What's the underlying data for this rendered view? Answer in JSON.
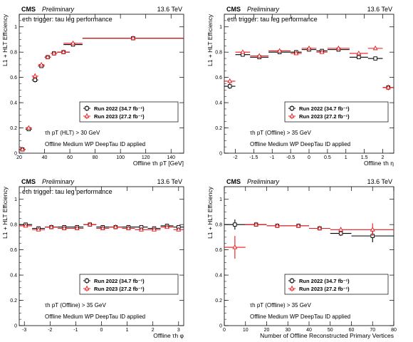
{
  "chart_data": [
    {
      "type": "scatter",
      "header_left": "CMS",
      "header_prelim": "Preliminary",
      "header_right": "13.6 TeV",
      "title": "eτh trigger: tau leg performance",
      "xlabel": "Offline τh pT [GeV]",
      "ylabel": "L1 + HLT Efficiency",
      "xlim": [
        20,
        150
      ],
      "ylim": [
        0,
        1.1
      ],
      "xticks": [
        20,
        40,
        60,
        80,
        100,
        120,
        140
      ],
      "yticks": [
        0,
        0.2,
        0.4,
        0.6,
        0.8,
        1.0
      ],
      "ytick_labels": [
        "0",
        "0.2",
        "0.4",
        "0.6",
        "0.8",
        "1"
      ],
      "annotation1": "τh pT (HLT) > 30 GeV",
      "annotation2": "Offline Medium WP DeepTau ID applied",
      "series": [
        {
          "name": "Run 2022 (34.7 fb⁻¹)",
          "color": "#000000",
          "marker": "square-open",
          "x": [
            22.5,
            27.5,
            32.5,
            37.5,
            42.5,
            47.5,
            55,
            62.5,
            110
          ],
          "xerr": [
            2.5,
            2.5,
            2.5,
            2.5,
            2.5,
            2.5,
            5,
            7.5,
            40
          ],
          "y": [
            0.03,
            0.19,
            0.58,
            0.69,
            0.76,
            0.79,
            0.8,
            0.86,
            0.91
          ],
          "yerr": [
            0.01,
            0.01,
            0.02,
            0.01,
            0.01,
            0.01,
            0.01,
            0.01,
            0.01
          ]
        },
        {
          "name": "Run 2023 (27.2 fb⁻¹)",
          "color": "#e8181a",
          "marker": "triangle-open",
          "x": [
            22.5,
            27.5,
            32.5,
            37.5,
            42.5,
            47.5,
            55,
            62.5,
            110
          ],
          "xerr": [
            2.5,
            2.5,
            2.5,
            2.5,
            2.5,
            2.5,
            5,
            7.5,
            40
          ],
          "y": [
            0.03,
            0.2,
            0.61,
            0.7,
            0.76,
            0.79,
            0.8,
            0.87,
            0.91
          ],
          "yerr": [
            0.01,
            0.01,
            0.02,
            0.01,
            0.01,
            0.01,
            0.01,
            0.01,
            0.01
          ]
        }
      ]
    },
    {
      "type": "scatter",
      "header_left": "CMS",
      "header_prelim": "Preliminary",
      "header_right": "13.6 TeV",
      "title": "eτh trigger: tau leg performance",
      "xlabel": "Offline τh η",
      "ylabel": "L1 + HLT Efficiency",
      "xlim": [
        -2.3,
        2.3
      ],
      "ylim": [
        0,
        1.1
      ],
      "xticks": [
        -2,
        -1.5,
        -1,
        -0.5,
        0,
        0.5,
        1,
        1.5,
        2
      ],
      "yticks": [
        0,
        0.2,
        0.4,
        0.6,
        0.8,
        1.0
      ],
      "ytick_labels": [
        "0",
        "0.2",
        "0.4",
        "0.6",
        "0.8",
        "1"
      ],
      "annotation1": "τh pT (Offline) > 35 GeV",
      "annotation2": "Offline Medium WP DeepTau ID applied",
      "series": [
        {
          "name": "Run 2022 (34.7 fb⁻¹)",
          "color": "#000000",
          "marker": "square-open",
          "x": [
            -2.15,
            -1.8,
            -1.35,
            -0.8,
            -0.35,
            0,
            0.35,
            0.8,
            1.35,
            1.8,
            2.15
          ],
          "xerr": [
            0.15,
            0.2,
            0.25,
            0.3,
            0.15,
            0.2,
            0.15,
            0.3,
            0.25,
            0.2,
            0.15
          ],
          "y": [
            0.53,
            0.78,
            0.76,
            0.8,
            0.8,
            0.82,
            0.81,
            0.82,
            0.76,
            0.75,
            0.52
          ],
          "yerr": [
            0.02,
            0.01,
            0.01,
            0.01,
            0.01,
            0.01,
            0.01,
            0.01,
            0.01,
            0.01,
            0.02
          ]
        },
        {
          "name": "Run 2023 (27.2 fb⁻¹)",
          "color": "#e8181a",
          "marker": "triangle-open",
          "x": [
            -2.15,
            -1.8,
            -1.35,
            -0.8,
            -0.35,
            0,
            0.35,
            0.8,
            1.35,
            1.8,
            2.15
          ],
          "xerr": [
            0.15,
            0.2,
            0.25,
            0.3,
            0.15,
            0.2,
            0.15,
            0.3,
            0.25,
            0.2,
            0.15
          ],
          "y": [
            0.57,
            0.8,
            0.77,
            0.81,
            0.79,
            0.83,
            0.8,
            0.83,
            0.79,
            0.83,
            0.52
          ],
          "yerr": [
            0.02,
            0.01,
            0.01,
            0.01,
            0.01,
            0.01,
            0.01,
            0.01,
            0.01,
            0.01,
            0.02
          ]
        }
      ]
    },
    {
      "type": "scatter",
      "header_left": "CMS",
      "header_prelim": "Preliminary",
      "header_right": "13.6 TeV",
      "title": "eτh trigger: tau leg performance",
      "xlabel": "Offline τh φ",
      "ylabel": "L1 + HLT Efficiency",
      "xlim": [
        -3.2,
        3.2
      ],
      "ylim": [
        0,
        1.1
      ],
      "xticks": [
        -3,
        -2,
        -1,
        0,
        1,
        2,
        3
      ],
      "yticks": [
        0,
        0.2,
        0.4,
        0.6,
        0.8,
        1.0
      ],
      "ytick_labels": [
        "0",
        "0.2",
        "0.4",
        "0.6",
        "0.8",
        "1"
      ],
      "annotation1": "τh pT (Offline) > 35 GeV",
      "annotation2": "Offline Medium WP DeepTau ID applied",
      "series": [
        {
          "name": "Run 2022 (34.7 fb⁻¹)",
          "color": "#000000",
          "marker": "square-open",
          "x": [
            -2.95,
            -2.45,
            -1.95,
            -1.45,
            -0.95,
            -0.45,
            0.05,
            0.55,
            1.05,
            1.55,
            2.05,
            2.55,
            3.0
          ],
          "xerr": [
            0.25,
            0.25,
            0.25,
            0.25,
            0.25,
            0.25,
            0.25,
            0.25,
            0.25,
            0.25,
            0.25,
            0.25,
            0.2
          ],
          "y": [
            0.8,
            0.77,
            0.78,
            0.78,
            0.78,
            0.8,
            0.78,
            0.78,
            0.78,
            0.78,
            0.77,
            0.79,
            0.78
          ],
          "yerr": [
            0.01,
            0.01,
            0.01,
            0.01,
            0.01,
            0.01,
            0.01,
            0.01,
            0.01,
            0.01,
            0.01,
            0.01,
            0.01
          ]
        },
        {
          "name": "Run 2023 (27.2 fb⁻¹)",
          "color": "#e8181a",
          "marker": "triangle-open",
          "x": [
            -2.95,
            -2.45,
            -1.95,
            -1.45,
            -0.95,
            -0.45,
            0.05,
            0.55,
            1.05,
            1.55,
            2.05,
            2.55,
            3.0
          ],
          "xerr": [
            0.25,
            0.25,
            0.25,
            0.25,
            0.25,
            0.25,
            0.25,
            0.25,
            0.25,
            0.25,
            0.25,
            0.25,
            0.2
          ],
          "y": [
            0.79,
            0.76,
            0.78,
            0.77,
            0.77,
            0.8,
            0.77,
            0.78,
            0.77,
            0.76,
            0.76,
            0.78,
            0.76
          ],
          "yerr": [
            0.01,
            0.01,
            0.01,
            0.01,
            0.01,
            0.01,
            0.01,
            0.01,
            0.01,
            0.01,
            0.01,
            0.01,
            0.01
          ]
        }
      ]
    },
    {
      "type": "scatter",
      "header_left": "CMS",
      "header_prelim": "Preliminary",
      "header_right": "13.6 TeV",
      "title": "",
      "xlabel": "Number of Offline Reconstructed Primary Vertices",
      "ylabel": "L1 + HLT Efficiency",
      "xlim": [
        0,
        80
      ],
      "ylim": [
        0,
        1.1
      ],
      "xticks": [
        0,
        10,
        20,
        30,
        40,
        50,
        60,
        70,
        80
      ],
      "yticks": [
        0,
        0.2,
        0.4,
        0.6,
        0.8,
        1.0
      ],
      "ytick_labels": [
        "0",
        "0.2",
        "0.4",
        "0.6",
        "0.8",
        "1"
      ],
      "annotation1": "τh pT (Offline) > 35 GeV",
      "annotation2": "Offline Medium WP DeepTau ID applied",
      "series": [
        {
          "name": "Run 2022 (34.7 fb⁻¹)",
          "color": "#000000",
          "marker": "square-open",
          "x": [
            5,
            15,
            25,
            35,
            45,
            55,
            70
          ],
          "xerr": [
            5,
            5,
            5,
            5,
            5,
            5,
            10
          ],
          "y": [
            0.8,
            0.8,
            0.79,
            0.79,
            0.77,
            0.73,
            0.71
          ],
          "yerr": [
            0.04,
            0.01,
            0.01,
            0.01,
            0.01,
            0.02,
            0.05
          ]
        },
        {
          "name": "Run 2023 (27.2 fb⁻¹)",
          "color": "#e8181a",
          "marker": "triangle-open",
          "x": [
            5,
            15,
            25,
            35,
            45,
            55,
            70
          ],
          "xerr": [
            5,
            5,
            5,
            5,
            5,
            5,
            10
          ],
          "y": [
            0.62,
            0.8,
            0.79,
            0.79,
            0.77,
            0.76,
            0.76
          ],
          "yerr": [
            0.09,
            0.01,
            0.01,
            0.01,
            0.01,
            0.02,
            0.05
          ]
        }
      ]
    }
  ]
}
